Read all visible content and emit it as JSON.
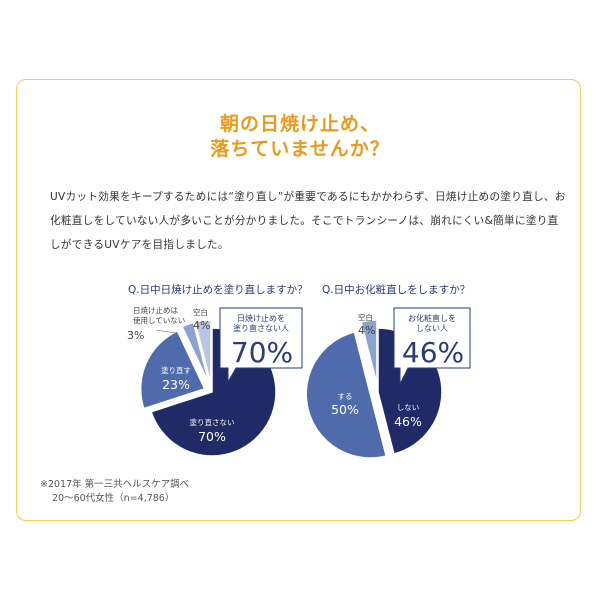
{
  "heading": {
    "line1": "朝の日焼け止め、",
    "line2": "落ちていませんか？"
  },
  "description": {
    "line1": "UVカット効果をキープするためには“塗り直し”が重要であるにもかかわらず、日焼け止めの塗り直し、お",
    "line2": "化粧直しをしていない人が多いことが分かりました。そこでトランシーノは、崩れにくい&簡単に塗り直",
    "line3": "しができるUVケアを目指しました。"
  },
  "colors": {
    "title": "#ec9a1a",
    "navy": "#1f2a66",
    "mid_blue": "#4f6bab",
    "light_blue": "#8ea2cf",
    "pale_blue": "#b9c5e2",
    "border": "#f3cf55"
  },
  "chart_data": [
    {
      "type": "pie",
      "title": "Q.日中日焼け止めを塗り直しますか？",
      "slices": [
        {
          "label": "塗り直さない",
          "value": 70,
          "value_label": "70%",
          "color": "#1f2a66"
        },
        {
          "label": "塗り直す",
          "value": 23,
          "value_label": "23%",
          "color": "#4f6bab"
        },
        {
          "label": "日焼け止めは使用していない",
          "value": 3,
          "value_label": "3%",
          "color": "#8ea2cf"
        },
        {
          "label": "空白",
          "value": 4,
          "value_label": "4%",
          "color": "#b9c5e2"
        }
      ],
      "callout": {
        "text_line1": "日焼け止めを",
        "text_line2": "塗り直さない人",
        "value_label": "70%"
      }
    },
    {
      "type": "pie",
      "title": "Q.日中お化粧直しをしますか？",
      "slices": [
        {
          "label": "しない",
          "value": 46,
          "value_label": "46%",
          "color": "#1f2a66"
        },
        {
          "label": "する",
          "value": 50,
          "value_label": "50%",
          "color": "#4f6bab"
        },
        {
          "label": "空白",
          "value": 4,
          "value_label": "4%",
          "color": "#8ea2cf"
        }
      ],
      "callout": {
        "text_line1": "お化粧直しを",
        "text_line2": "しない人",
        "value_label": "46%"
      }
    }
  ],
  "footnote": {
    "line1": "※2017年 第一三共ヘルスケア調べ",
    "line2": "20〜60代女性（n=4,786）"
  }
}
